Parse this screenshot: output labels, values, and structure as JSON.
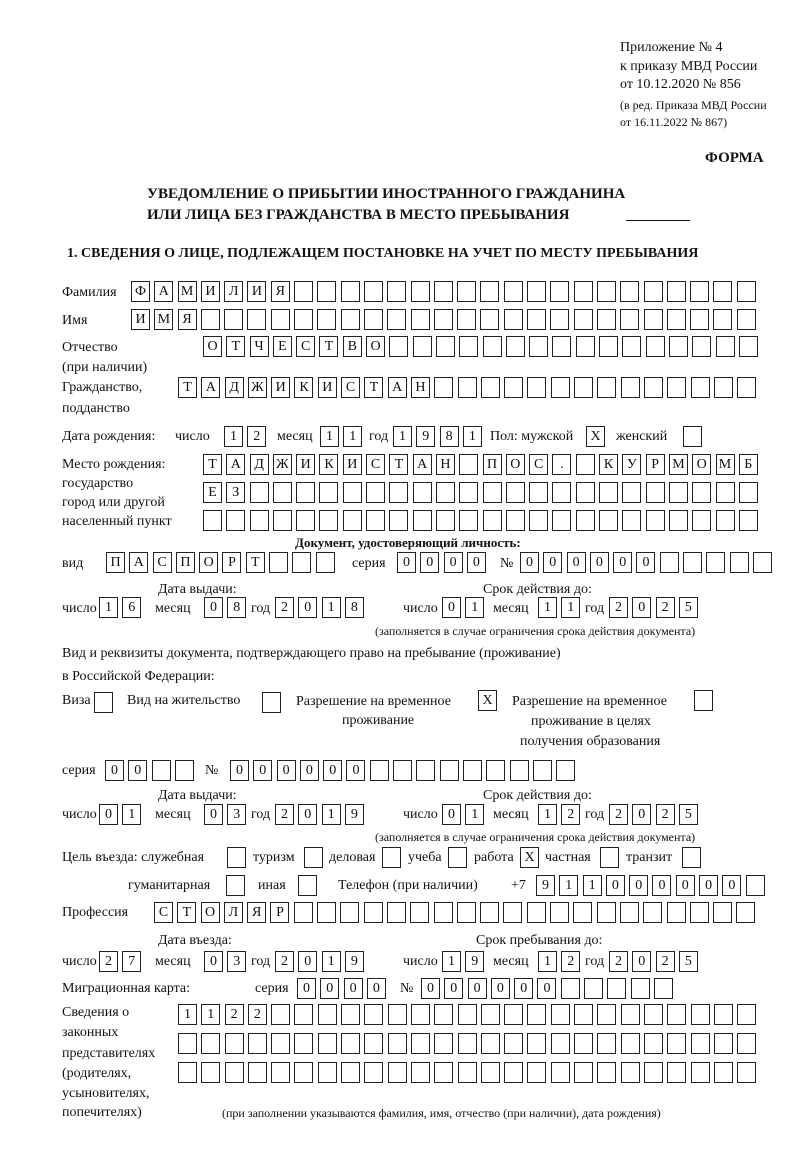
{
  "header": {
    "appendix": [
      "Приложение № 4",
      "к приказу МВД России",
      "от 10.12.2020 № 856"
    ],
    "revision": [
      "(в ред. Приказа МВД России",
      "от 16.11.2022 № 867)"
    ],
    "form_label": "ФОРМА",
    "title_line1": "УВЕДОМЛЕНИЕ О ПРИБЫТИИ ИНОСТРАННОГО ГРАЖДАНИНА",
    "title_line2": "ИЛИ ЛИЦА БЕЗ ГРАЖДАНСТВА В МЕСТО ПРЕБЫВАНИЯ",
    "section1": "1. СВЕДЕНИЯ О ЛИЦЕ, ПОДЛЕЖАЩЕМ ПОСТАНОВКЕ НА УЧЕТ ПО МЕСТУ ПРЕБЫВАНИЯ"
  },
  "labels": {
    "surname": "Фамилия",
    "name": "Имя",
    "patronymic": "Отчество",
    "patronymic_note": "(при наличии)",
    "citizenship": "Гражданство,",
    "citizenship2": "подданство",
    "birth_date": "Дата рождения:",
    "day": "число",
    "month": "месяц",
    "year": "год",
    "sex_male": "Пол: мужской",
    "sex_female": "женский",
    "birth_place": [
      "Место рождения:",
      "государство",
      "город или другой",
      "населенный пункт"
    ],
    "id_doc": "Документ, удостоверяющий личность:",
    "kind": "вид",
    "series": "серия",
    "number": "№",
    "issue_date": "Дата выдачи:",
    "valid_until": "Срок действия до:",
    "validity_note": "(заполняется в случае ограничения срока действия документа)",
    "stay_doc_line1": "Вид и реквизиты документа, подтверждающего право на пребывание (проживание)",
    "stay_doc_line2": "в Российской Федерации:",
    "visa": "Виза",
    "residence": "Вид на жительство",
    "temp_residence": [
      "Разрешение на временное",
      "проживание"
    ],
    "temp_residence_edu": [
      "Разрешение на временное",
      "проживание в целях",
      "получения образования"
    ],
    "purpose": "Цель въезда: служебная",
    "tourism": "туризм",
    "business": "деловая",
    "study": "учеба",
    "work": "работа",
    "private": "частная",
    "transit": "транзит",
    "humanitarian": "гуманитарная",
    "other": "иная",
    "phone": "Телефон (при наличии)",
    "phone_prefix": "+7",
    "profession": "Профессия",
    "entry_date": "Дата въезда:",
    "stay_until": "Срок пребывания до:",
    "migration_card": "Миграционная карта:",
    "representatives": [
      "Сведения о",
      "законных",
      "представителях",
      "(родителях,",
      "усыновителях,",
      "попечителях)"
    ],
    "representatives_note": "(при заполнении указываются фамилия, имя, отчество (при наличии), дата рождения)"
  },
  "person": {
    "surname": [
      "Ф",
      "А",
      "М",
      "И",
      "Л",
      "И",
      "Я",
      "",
      "",
      "",
      "",
      "",
      "",
      "",
      "",
      "",
      "",
      "",
      "",
      "",
      "",
      "",
      "",
      "",
      "",
      "",
      ""
    ],
    "name": [
      "И",
      "М",
      "Я",
      "",
      "",
      "",
      "",
      "",
      "",
      "",
      "",
      "",
      "",
      "",
      "",
      "",
      "",
      "",
      "",
      "",
      "",
      "",
      "",
      "",
      "",
      "",
      ""
    ],
    "patronymic": [
      "О",
      "Т",
      "Ч",
      "Е",
      "С",
      "Т",
      "В",
      "О",
      "",
      "",
      "",
      "",
      "",
      "",
      "",
      "",
      "",
      "",
      "",
      "",
      "",
      "",
      "",
      ""
    ],
    "citizenship": [
      "Т",
      "А",
      "Д",
      "Ж",
      "И",
      "К",
      "И",
      "С",
      "Т",
      "А",
      "Н",
      "",
      "",
      "",
      "",
      "",
      "",
      "",
      "",
      "",
      "",
      "",
      "",
      "",
      ""
    ],
    "birth_day": [
      "1",
      "2"
    ],
    "birth_month": [
      "1",
      "1"
    ],
    "birth_year": [
      "1",
      "9",
      "8",
      "1"
    ],
    "sex_male": [
      "X"
    ],
    "sex_female": [
      ""
    ],
    "birth_place_1": [
      "Т",
      "А",
      "Д",
      "Ж",
      "И",
      "К",
      "И",
      "С",
      "Т",
      "А",
      "Н",
      "",
      "П",
      "О",
      "С",
      ".",
      "",
      "К",
      "У",
      "Р",
      "М",
      "О",
      "М",
      "Б"
    ],
    "birth_place_2": [
      "Е",
      "З",
      "",
      "",
      "",
      "",
      "",
      "",
      "",
      "",
      "",
      "",
      "",
      "",
      "",
      "",
      "",
      "",
      "",
      "",
      "",
      "",
      "",
      ""
    ],
    "birth_place_3": [
      "",
      "",
      "",
      "",
      "",
      "",
      "",
      "",
      "",
      "",
      "",
      "",
      "",
      "",
      "",
      "",
      "",
      "",
      "",
      "",
      "",
      "",
      "",
      ""
    ]
  },
  "id_document": {
    "kind": [
      "П",
      "А",
      "С",
      "П",
      "О",
      "Р",
      "Т",
      "",
      "",
      ""
    ],
    "series": [
      "0",
      "0",
      "0",
      "0"
    ],
    "number": [
      "0",
      "0",
      "0",
      "0",
      "0",
      "0",
      "",
      "",
      "",
      "",
      ""
    ],
    "issue_day": [
      "1",
      "6"
    ],
    "issue_month": [
      "0",
      "8"
    ],
    "issue_year": [
      "2",
      "0",
      "1",
      "8"
    ],
    "valid_day": [
      "0",
      "1"
    ],
    "valid_month": [
      "1",
      "1"
    ],
    "valid_year": [
      "2",
      "0",
      "2",
      "5"
    ]
  },
  "stay_document": {
    "visa": [
      ""
    ],
    "residence": [
      ""
    ],
    "temp_residence": [
      "X"
    ],
    "temp_residence_edu": [
      ""
    ],
    "series": [
      "0",
      "0",
      "",
      ""
    ],
    "number": [
      "0",
      "0",
      "0",
      "0",
      "0",
      "0",
      "",
      "",
      "",
      "",
      "",
      "",
      "",
      "",
      ""
    ],
    "issue_day": [
      "0",
      "1"
    ],
    "issue_month": [
      "0",
      "3"
    ],
    "issue_year": [
      "2",
      "0",
      "1",
      "9"
    ],
    "valid_day": [
      "0",
      "1"
    ],
    "valid_month": [
      "1",
      "2"
    ],
    "valid_year": [
      "2",
      "0",
      "2",
      "5"
    ]
  },
  "purpose": {
    "official": [
      ""
    ],
    "tourism": [
      ""
    ],
    "business": [
      ""
    ],
    "study": [
      ""
    ],
    "work": [
      "X"
    ],
    "private": [
      ""
    ],
    "transit": [
      ""
    ],
    "humanitarian": [
      ""
    ],
    "other": [
      ""
    ]
  },
  "phone": [
    "9",
    "1",
    "1",
    "0",
    "0",
    "0",
    "0",
    "0",
    "0",
    ""
  ],
  "profession": [
    "С",
    "Т",
    "О",
    "Л",
    "Я",
    "Р",
    "",
    "",
    "",
    "",
    "",
    "",
    "",
    "",
    "",
    "",
    "",
    "",
    "",
    "",
    "",
    "",
    "",
    "",
    "",
    ""
  ],
  "entry": {
    "entry_day": [
      "2",
      "7"
    ],
    "entry_month": [
      "0",
      "3"
    ],
    "entry_year": [
      "2",
      "0",
      "1",
      "9"
    ],
    "until_day": [
      "1",
      "9"
    ],
    "until_month": [
      "1",
      "2"
    ],
    "until_year": [
      "2",
      "0",
      "2",
      "5"
    ]
  },
  "migration_card": {
    "series": [
      "0",
      "0",
      "0",
      "0"
    ],
    "number": [
      "0",
      "0",
      "0",
      "0",
      "0",
      "0",
      "",
      "",
      "",
      "",
      ""
    ]
  },
  "representatives": {
    "row1": [
      "1",
      "1",
      "2",
      "2",
      "",
      "",
      "",
      "",
      "",
      "",
      "",
      "",
      "",
      "",
      "",
      "",
      "",
      "",
      "",
      "",
      "",
      "",
      "",
      "",
      ""
    ],
    "row2": [
      "",
      "",
      "",
      "",
      "",
      "",
      "",
      "",
      "",
      "",
      "",
      "",
      "",
      "",
      "",
      "",
      "",
      "",
      "",
      "",
      "",
      "",
      "",
      "",
      ""
    ],
    "row3": [
      "",
      "",
      "",
      "",
      "",
      "",
      "",
      "",
      "",
      "",
      "",
      "",
      "",
      "",
      "",
      "",
      "",
      "",
      "",
      "",
      "",
      "",
      "",
      "",
      ""
    ]
  }
}
